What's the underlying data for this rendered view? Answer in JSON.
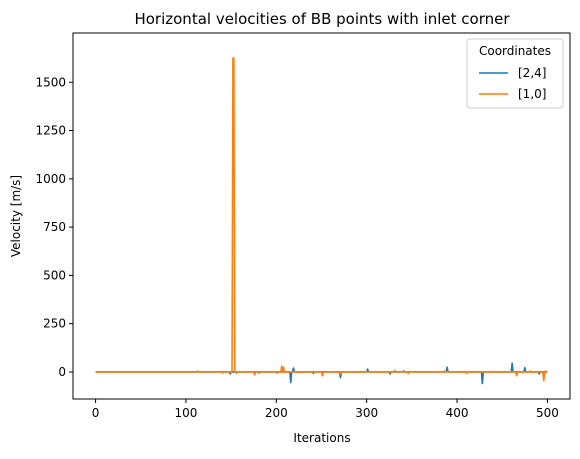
{
  "chart_data": {
    "type": "line",
    "title": "Horizontal velocities of BB points with inlet corner",
    "xlabel": "Iterations",
    "ylabel": "Velocity [m/s]",
    "xlim": [
      -25,
      525
    ],
    "ylim": [
      -140,
      1755
    ],
    "x_ticks": [
      0,
      100,
      200,
      300,
      400,
      500
    ],
    "y_ticks": [
      0,
      250,
      500,
      750,
      1000,
      1250,
      1500
    ],
    "grid": false,
    "legend": {
      "title": "Coordinates",
      "placement": "top-right"
    },
    "series": [
      {
        "name": "[2,4]",
        "color": "#1f77b4",
        "points": [
          [
            0,
            0
          ],
          [
            110,
            0
          ],
          [
            111,
            2
          ],
          [
            112,
            0
          ],
          [
            148,
            0
          ],
          [
            149,
            -10
          ],
          [
            150,
            0
          ],
          [
            155,
            0
          ],
          [
            156,
            -5
          ],
          [
            157,
            0
          ],
          [
            180,
            0
          ],
          [
            181,
            -5
          ],
          [
            182,
            0
          ],
          [
            200,
            0
          ],
          [
            201,
            -5
          ],
          [
            202,
            0
          ],
          [
            215,
            0
          ],
          [
            216,
            -55
          ],
          [
            217,
            0
          ],
          [
            218,
            0
          ],
          [
            219,
            20
          ],
          [
            220,
            0
          ],
          [
            240,
            0
          ],
          [
            241,
            -8
          ],
          [
            242,
            0
          ],
          [
            270,
            0
          ],
          [
            271,
            -30
          ],
          [
            272,
            0
          ],
          [
            300,
            0
          ],
          [
            301,
            15
          ],
          [
            302,
            0
          ],
          [
            325,
            0
          ],
          [
            326,
            -10
          ],
          [
            327,
            0
          ],
          [
            340,
            0
          ],
          [
            341,
            5
          ],
          [
            342,
            0
          ],
          [
            388,
            0
          ],
          [
            389,
            25
          ],
          [
            390,
            0
          ],
          [
            410,
            0
          ],
          [
            411,
            -5
          ],
          [
            412,
            0
          ],
          [
            427,
            0
          ],
          [
            428,
            -60
          ],
          [
            429,
            0
          ],
          [
            460,
            0
          ],
          [
            461,
            45
          ],
          [
            462,
            0
          ],
          [
            474,
            0
          ],
          [
            475,
            22
          ],
          [
            476,
            0
          ],
          [
            490,
            0
          ],
          [
            491,
            -10
          ],
          [
            492,
            0
          ],
          [
            500,
            0
          ]
        ]
      },
      {
        "name": "[1,0]",
        "color": "#ff7f0e",
        "points": [
          [
            0,
            0
          ],
          [
            112,
            0
          ],
          [
            113,
            5
          ],
          [
            114,
            0
          ],
          [
            140,
            0
          ],
          [
            141,
            -5
          ],
          [
            142,
            0
          ],
          [
            150,
            0
          ],
          [
            151,
            10
          ],
          [
            152,
            1625
          ],
          [
            153,
            1625
          ],
          [
            154,
            0
          ],
          [
            175,
            0
          ],
          [
            176,
            -15
          ],
          [
            177,
            0
          ],
          [
            205,
            0
          ],
          [
            206,
            30
          ],
          [
            207,
            0
          ],
          [
            208,
            25
          ],
          [
            209,
            0
          ],
          [
            250,
            0
          ],
          [
            251,
            -20
          ],
          [
            252,
            0
          ],
          [
            270,
            0
          ],
          [
            271,
            -10
          ],
          [
            272,
            0
          ],
          [
            330,
            0
          ],
          [
            331,
            8
          ],
          [
            332,
            0
          ],
          [
            345,
            0
          ],
          [
            346,
            -8
          ],
          [
            347,
            0
          ],
          [
            385,
            0
          ],
          [
            386,
            5
          ],
          [
            387,
            0
          ],
          [
            410,
            0
          ],
          [
            411,
            -8
          ],
          [
            412,
            0
          ],
          [
            440,
            0
          ],
          [
            441,
            3
          ],
          [
            442,
            0
          ],
          [
            465,
            0
          ],
          [
            466,
            -20
          ],
          [
            467,
            0
          ],
          [
            480,
            0
          ],
          [
            481,
            5
          ],
          [
            482,
            0
          ],
          [
            495,
            0
          ],
          [
            496,
            -45
          ],
          [
            497,
            0
          ],
          [
            498,
            5
          ],
          [
            499,
            0
          ],
          [
            500,
            0
          ]
        ]
      }
    ]
  }
}
